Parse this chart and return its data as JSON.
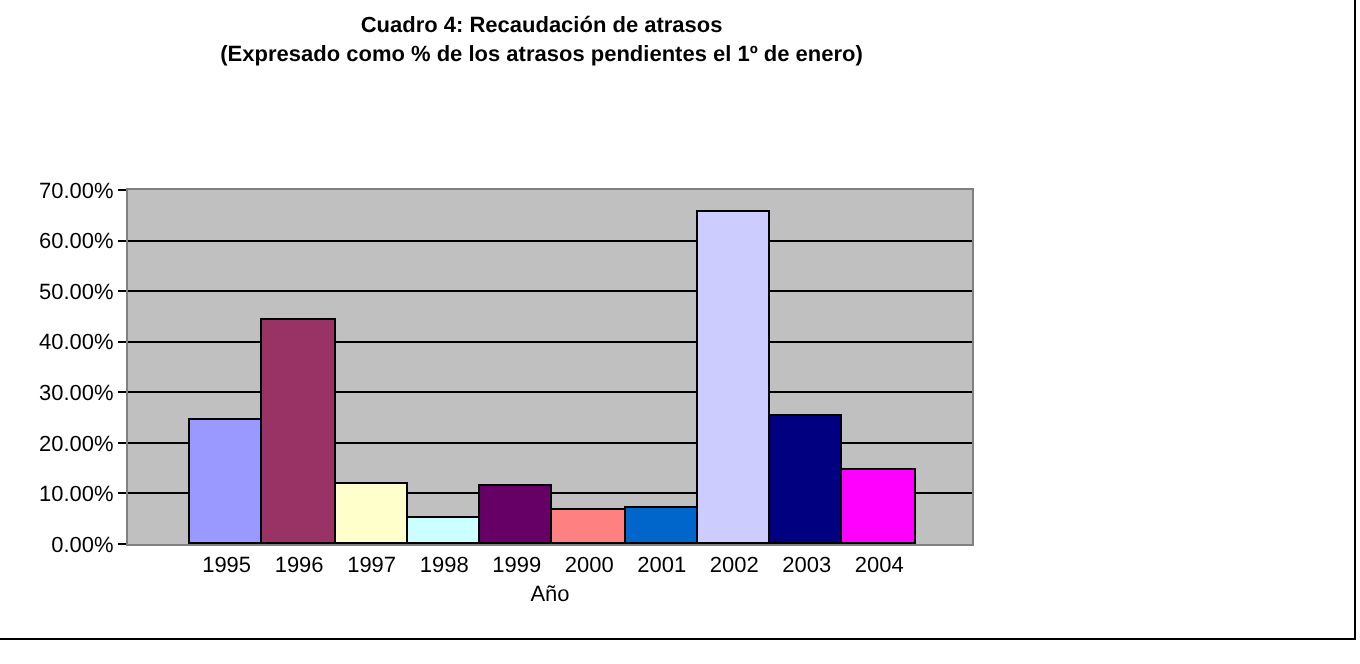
{
  "chart_data": {
    "type": "bar",
    "title": "Cuadro 4: Recaudación de atrasos\n(Expresado como % de los atrasos pendientes el 1º de enero)",
    "xlabel": "Año",
    "categories": [
      "1995",
      "1996",
      "1997",
      "1998",
      "1999",
      "2000",
      "2001",
      "2002",
      "2003",
      "2004"
    ],
    "values": [
      24.5,
      44.3,
      12.0,
      5.3,
      11.5,
      6.7,
      7.1,
      65.8,
      25.4,
      14.6
    ],
    "colors": [
      "#9999ff",
      "#993366",
      "#ffffcc",
      "#ccffff",
      "#660066",
      "#ff8080",
      "#0066cc",
      "#ccccff",
      "#000080",
      "#ff00ff"
    ],
    "ylim": [
      0,
      70
    ],
    "yticks": [
      {
        "value": 0,
        "label": "0.00%"
      },
      {
        "value": 10,
        "label": "10.00%"
      },
      {
        "value": 20,
        "label": "20.00%"
      },
      {
        "value": 30,
        "label": "30.00%"
      },
      {
        "value": 40,
        "label": "40.00%"
      },
      {
        "value": 50,
        "label": "50.00%"
      },
      {
        "value": 60,
        "label": "60.00%"
      },
      {
        "value": 70,
        "label": "70.00%"
      }
    ],
    "grid": "y",
    "legend": false
  }
}
